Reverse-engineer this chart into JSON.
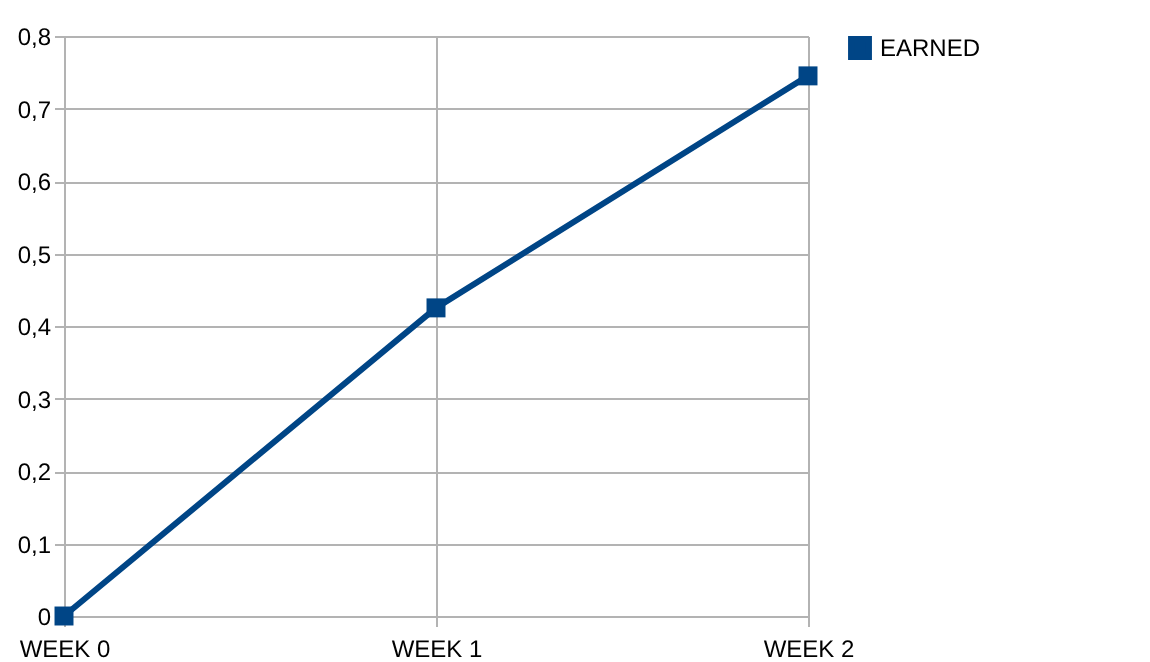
{
  "chart_data": {
    "type": "line",
    "categories": [
      "WEEK 0",
      "WEEK 1",
      "WEEK 2"
    ],
    "series": [
      {
        "name": "EARNED",
        "color": "#004586",
        "values": [
          0,
          0.425,
          0.745
        ]
      }
    ],
    "ylim": [
      0,
      0.8
    ],
    "yticks": [
      {
        "value": 0,
        "label": "0"
      },
      {
        "value": 0.1,
        "label": "0,1"
      },
      {
        "value": 0.2,
        "label": "0,2"
      },
      {
        "value": 0.3,
        "label": "0,3"
      },
      {
        "value": 0.4,
        "label": "0,4"
      },
      {
        "value": 0.5,
        "label": "0,5"
      },
      {
        "value": 0.6,
        "label": "0,6"
      },
      {
        "value": 0.7,
        "label": "0,7"
      },
      {
        "value": 0.8,
        "label": "0,8"
      }
    ],
    "grid": true,
    "legend": "right",
    "marker": "square",
    "line_style": "solid"
  }
}
